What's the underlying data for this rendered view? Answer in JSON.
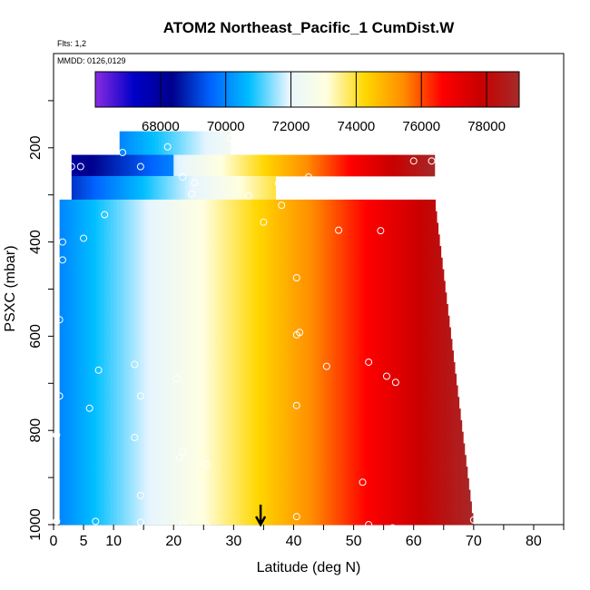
{
  "chart_data": {
    "type": "heatmap",
    "title": "ATOM2 Northeast_Pacific_1 CumDist.W",
    "notes": [
      "Flts: 1,2",
      "MMDD: 0126,0129"
    ],
    "xlabel": "Latitude (deg N)",
    "ylabel": "PSXC (mbar)",
    "xlim": [
      0,
      85
    ],
    "ylim": [
      1000,
      0
    ],
    "x_ticks": [
      0,
      5,
      10,
      20,
      30,
      40,
      50,
      60,
      70,
      80
    ],
    "y_ticks": [
      200,
      400,
      600,
      800,
      1000
    ],
    "colorbar": {
      "range": [
        66000,
        79000
      ],
      "ticks": [
        68000,
        70000,
        72000,
        74000,
        76000,
        78000
      ],
      "tick_labels": [
        "68000",
        "70000",
        "72000",
        "74000",
        "76000",
        "78000"
      ],
      "colors": [
        "#8a2be2",
        "#0000c8",
        "#00008b",
        "#0064ff",
        "#00bfff",
        "#e6f5ff",
        "#ffffe0",
        "#ffd700",
        "#ff8c00",
        "#ff0000",
        "#c80000",
        "#a52a2a"
      ]
    },
    "bands": [
      {
        "p_top": 165,
        "p_bot": 215,
        "lat_min": 11,
        "lat_max": 29.5,
        "value_min": 70000,
        "value_max": 72500
      },
      {
        "p_top": 215,
        "p_bot": 260,
        "lat_min": 3,
        "lat_max": 63.5,
        "value_min": 69000,
        "value_max": 79000
      },
      {
        "p_top": 260,
        "p_bot": 310,
        "lat_min": 3,
        "lat_max": 37,
        "value_min": 69000,
        "value_max": 74000
      },
      {
        "p_top": 310,
        "p_bot": 1000,
        "lat_min": 1,
        "lat_max": 70,
        "value_min": 70000,
        "value_max": 79000
      }
    ],
    "observation_points": [
      {
        "lat": 11.5,
        "p": 210
      },
      {
        "lat": 19,
        "p": 198
      },
      {
        "lat": 29.5,
        "p": 180
      },
      {
        "lat": 3,
        "p": 240
      },
      {
        "lat": 4.5,
        "p": 240
      },
      {
        "lat": 14.5,
        "p": 240
      },
      {
        "lat": 21.5,
        "p": 262
      },
      {
        "lat": 23.5,
        "p": 274
      },
      {
        "lat": 23,
        "p": 298
      },
      {
        "lat": 32.5,
        "p": 302
      },
      {
        "lat": 37.5,
        "p": 276
      },
      {
        "lat": 39.5,
        "p": 276
      },
      {
        "lat": 42.5,
        "p": 262
      },
      {
        "lat": 50,
        "p": 288
      },
      {
        "lat": 38,
        "p": 322
      },
      {
        "lat": 8.5,
        "p": 342
      },
      {
        "lat": 5,
        "p": 392
      },
      {
        "lat": 35,
        "p": 358
      },
      {
        "lat": 47.5,
        "p": 375
      },
      {
        "lat": 54.5,
        "p": 376
      },
      {
        "lat": 60,
        "p": 228
      },
      {
        "lat": 63,
        "p": 228
      },
      {
        "lat": 1.5,
        "p": 400
      },
      {
        "lat": 1.5,
        "p": 438
      },
      {
        "lat": 40.5,
        "p": 476
      },
      {
        "lat": 1,
        "p": 565
      },
      {
        "lat": 40.5,
        "p": 597
      },
      {
        "lat": 41,
        "p": 592
      },
      {
        "lat": 7.5,
        "p": 672
      },
      {
        "lat": 13.5,
        "p": 660
      },
      {
        "lat": 20.5,
        "p": 690
      },
      {
        "lat": 45.5,
        "p": 664
      },
      {
        "lat": 52.5,
        "p": 655
      },
      {
        "lat": 55.5,
        "p": 685
      },
      {
        "lat": 57,
        "p": 698
      },
      {
        "lat": 69,
        "p": 648
      },
      {
        "lat": 70,
        "p": 680
      },
      {
        "lat": 1,
        "p": 727
      },
      {
        "lat": 6,
        "p": 753
      },
      {
        "lat": 14.5,
        "p": 727
      },
      {
        "lat": 40.5,
        "p": 747
      },
      {
        "lat": 0.5,
        "p": 810
      },
      {
        "lat": 13.5,
        "p": 815
      },
      {
        "lat": 21.5,
        "p": 845
      },
      {
        "lat": 21,
        "p": 858
      },
      {
        "lat": 25.5,
        "p": 872
      },
      {
        "lat": 14.5,
        "p": 938
      },
      {
        "lat": 51.5,
        "p": 910
      },
      {
        "lat": 0.5,
        "p": 993
      },
      {
        "lat": 7,
        "p": 993
      },
      {
        "lat": 14.5,
        "p": 995
      },
      {
        "lat": 21.5,
        "p": 1000
      },
      {
        "lat": 25.5,
        "p": 1003
      },
      {
        "lat": 40.5,
        "p": 983
      },
      {
        "lat": 46.5,
        "p": 1012
      },
      {
        "lat": 52.5,
        "p": 1000
      },
      {
        "lat": 56.5,
        "p": 1007
      },
      {
        "lat": 70,
        "p": 990
      }
    ],
    "marker_arrow": {
      "lat": 34.5,
      "direction": "down"
    }
  }
}
